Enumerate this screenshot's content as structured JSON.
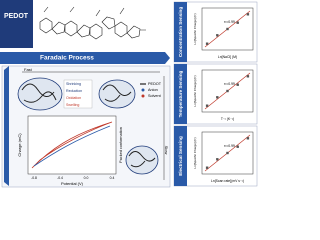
{
  "header": {
    "title": "PEDOT"
  },
  "process": {
    "title": "Faradaic Process",
    "fast": "Fast",
    "slow": "Slow",
    "steps": [
      "Shrinking",
      "Reduction",
      "Oxidation",
      "Swelling"
    ],
    "legend": [
      "PEDOT",
      "Anion",
      "Solvent"
    ],
    "packed": "Packed conformation"
  },
  "cv_plot": {
    "y_label": "Charge (mC)",
    "x_label": "Potential (V)",
    "xticks": [
      "-0.8",
      "-0.4",
      "0.0",
      "0.4"
    ]
  },
  "panels": [
    {
      "title": "Concentration Sensing",
      "y_label": "Ln[Specific Charge] (C)",
      "x_label": "Ln[NaCl] (M)",
      "annotation": "r²=0.99"
    },
    {
      "title": "Temperature Sensing",
      "y_label": "Ln[Specific Charge] (C)",
      "x_label": "T⁻¹ (K⁻¹)",
      "annotation": "r²=0.99"
    },
    {
      "title": "Electrical Sensing",
      "y_label": "Ln[Specific Charge] (C)",
      "x_label": "Ln[Scan rate](mV s⁻¹)",
      "annotation": "r²=0.99"
    }
  ]
}
